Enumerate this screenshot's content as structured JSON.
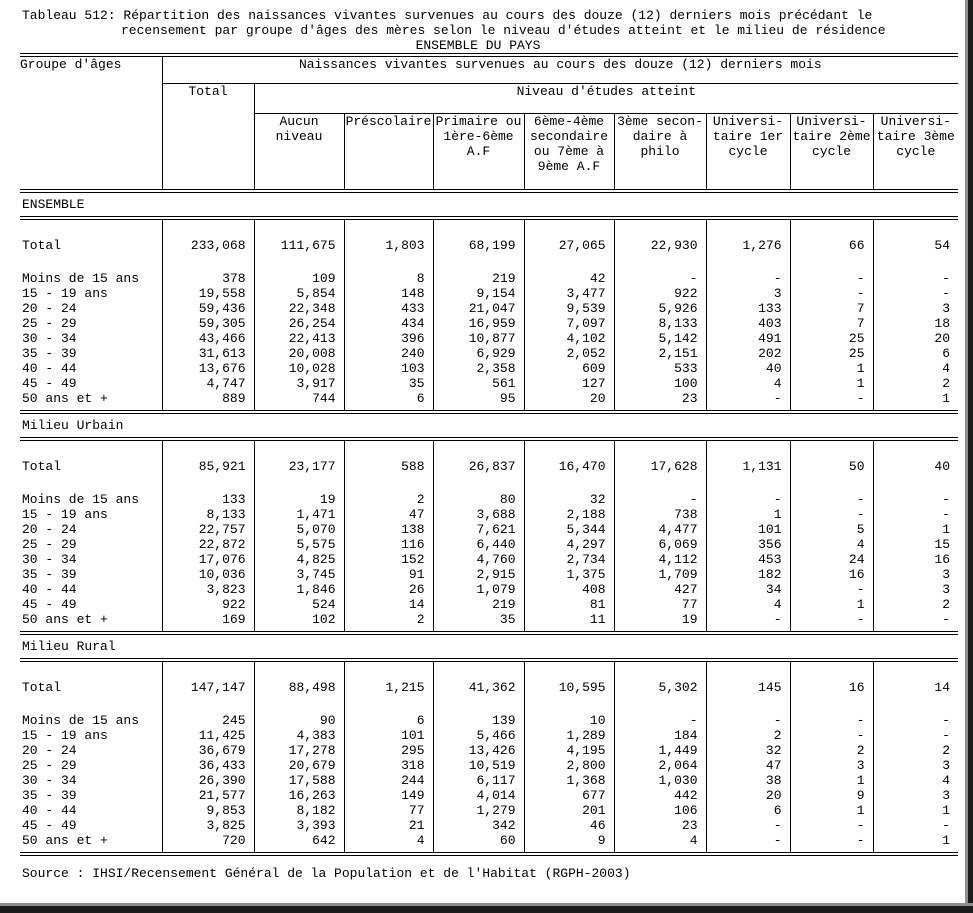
{
  "title": {
    "line1": "Tableau 512: Répartition des naissances vivantes survenues au cours des douze (12) derniers mois précédant le",
    "line2": "recensement par groupe d'âges des mères selon le niveau d'études atteint et le milieu de résidence",
    "line3": "ENSEMBLE DU PAYS"
  },
  "header": {
    "col_groupe": "Groupe d'âges",
    "span_naissances": "Naissances vivantes survenues au cours des douze (12) derniers mois",
    "col_total": "Total",
    "span_niveau": "Niveau d'études atteint",
    "edu_columns": [
      "Aucun\nniveau",
      "Préscolaire",
      "Primaire ou\n1ère-6ème\nA.F",
      "6ème-4ème\nsecondaire\nou 7ème à\n9ème A.F",
      "3ème secon-\ndaire à\nphilo",
      "Universi-\ntaire 1er\ncycle",
      "Universi-\ntaire 2ème\ncycle",
      "Universi-\ntaire 3ème\ncycle"
    ]
  },
  "chart_data": {
    "type": "table",
    "title": "Tableau 512 — Naissances vivantes des 12 derniers mois par groupe d'âges des mères, niveau d'études et milieu de résidence (ENSEMBLE DU PAYS)",
    "columns": [
      "Total",
      "Aucun niveau",
      "Préscolaire",
      "Primaire ou 1ère-6ème A.F",
      "6ème-4ème secondaire ou 7ème à 9ème A.F",
      "3ème secondaire à philo",
      "Universitaire 1er cycle",
      "Universitaire 2ème cycle",
      "Universitaire 3ème cycle"
    ]
  },
  "sections": [
    {
      "label": "ENSEMBLE",
      "rows": [
        {
          "label": "Total",
          "values": [
            "233,068",
            "111,675",
            "1,803",
            "68,199",
            "27,065",
            "22,930",
            "1,276",
            "66",
            "54"
          ]
        },
        {
          "label": "Moins de 15 ans",
          "values": [
            "378",
            "109",
            "8",
            "219",
            "42",
            "-",
            "-",
            "-",
            "-"
          ]
        },
        {
          "label": "15 - 19 ans",
          "values": [
            "19,558",
            "5,854",
            "148",
            "9,154",
            "3,477",
            "922",
            "3",
            "-",
            "-"
          ]
        },
        {
          "label": "20 - 24",
          "values": [
            "59,436",
            "22,348",
            "433",
            "21,047",
            "9,539",
            "5,926",
            "133",
            "7",
            "3"
          ]
        },
        {
          "label": "25 - 29",
          "values": [
            "59,305",
            "26,254",
            "434",
            "16,959",
            "7,097",
            "8,133",
            "403",
            "7",
            "18"
          ]
        },
        {
          "label": "30 - 34",
          "values": [
            "43,466",
            "22,413",
            "396",
            "10,877",
            "4,102",
            "5,142",
            "491",
            "25",
            "20"
          ]
        },
        {
          "label": "35 - 39",
          "values": [
            "31,613",
            "20,008",
            "240",
            "6,929",
            "2,052",
            "2,151",
            "202",
            "25",
            "6"
          ]
        },
        {
          "label": "40 - 44",
          "values": [
            "13,676",
            "10,028",
            "103",
            "2,358",
            "609",
            "533",
            "40",
            "1",
            "4"
          ]
        },
        {
          "label": "45 - 49",
          "values": [
            "4,747",
            "3,917",
            "35",
            "561",
            "127",
            "100",
            "4",
            "1",
            "2"
          ]
        },
        {
          "label": "50 ans et +",
          "values": [
            "889",
            "744",
            "6",
            "95",
            "20",
            "23",
            "-",
            "-",
            "1"
          ]
        }
      ]
    },
    {
      "label": "Milieu Urbain",
      "rows": [
        {
          "label": "Total",
          "values": [
            "85,921",
            "23,177",
            "588",
            "26,837",
            "16,470",
            "17,628",
            "1,131",
            "50",
            "40"
          ]
        },
        {
          "label": "Moins de 15 ans",
          "values": [
            "133",
            "19",
            "2",
            "80",
            "32",
            "-",
            "-",
            "-",
            "-"
          ]
        },
        {
          "label": "15 - 19 ans",
          "values": [
            "8,133",
            "1,471",
            "47",
            "3,688",
            "2,188",
            "738",
            "1",
            "-",
            "-"
          ]
        },
        {
          "label": "20 - 24",
          "values": [
            "22,757",
            "5,070",
            "138",
            "7,621",
            "5,344",
            "4,477",
            "101",
            "5",
            "1"
          ]
        },
        {
          "label": "25 - 29",
          "values": [
            "22,872",
            "5,575",
            "116",
            "6,440",
            "4,297",
            "6,069",
            "356",
            "4",
            "15"
          ]
        },
        {
          "label": "30 - 34",
          "values": [
            "17,076",
            "4,825",
            "152",
            "4,760",
            "2,734",
            "4,112",
            "453",
            "24",
            "16"
          ]
        },
        {
          "label": "35 - 39",
          "values": [
            "10,036",
            "3,745",
            "91",
            "2,915",
            "1,375",
            "1,709",
            "182",
            "16",
            "3"
          ]
        },
        {
          "label": "40 - 44",
          "values": [
            "3,823",
            "1,846",
            "26",
            "1,079",
            "408",
            "427",
            "34",
            "-",
            "3"
          ]
        },
        {
          "label": "45 - 49",
          "values": [
            "922",
            "524",
            "14",
            "219",
            "81",
            "77",
            "4",
            "1",
            "2"
          ]
        },
        {
          "label": "50 ans et +",
          "values": [
            "169",
            "102",
            "2",
            "35",
            "11",
            "19",
            "-",
            "-",
            "-"
          ]
        }
      ]
    },
    {
      "label": "Milieu Rural",
      "rows": [
        {
          "label": "Total",
          "values": [
            "147,147",
            "88,498",
            "1,215",
            "41,362",
            "10,595",
            "5,302",
            "145",
            "16",
            "14"
          ]
        },
        {
          "label": "Moins de 15 ans",
          "values": [
            "245",
            "90",
            "6",
            "139",
            "10",
            "-",
            "-",
            "-",
            "-"
          ]
        },
        {
          "label": "15 - 19 ans",
          "values": [
            "11,425",
            "4,383",
            "101",
            "5,466",
            "1,289",
            "184",
            "2",
            "-",
            "-"
          ]
        },
        {
          "label": "20 - 24",
          "values": [
            "36,679",
            "17,278",
            "295",
            "13,426",
            "4,195",
            "1,449",
            "32",
            "2",
            "2"
          ]
        },
        {
          "label": "25 - 29",
          "values": [
            "36,433",
            "20,679",
            "318",
            "10,519",
            "2,800",
            "2,064",
            "47",
            "3",
            "3"
          ]
        },
        {
          "label": "30 - 34",
          "values": [
            "26,390",
            "17,588",
            "244",
            "6,117",
            "1,368",
            "1,030",
            "38",
            "1",
            "4"
          ]
        },
        {
          "label": "35 - 39",
          "values": [
            "21,577",
            "16,263",
            "149",
            "4,014",
            "677",
            "442",
            "20",
            "9",
            "3"
          ]
        },
        {
          "label": "40 - 44",
          "values": [
            "9,853",
            "8,182",
            "77",
            "1,279",
            "201",
            "106",
            "6",
            "1",
            "1"
          ]
        },
        {
          "label": "45 - 49",
          "values": [
            "3,825",
            "3,393",
            "21",
            "342",
            "46",
            "23",
            "-",
            "-",
            "-"
          ]
        },
        {
          "label": "50 ans et +",
          "values": [
            "720",
            "642",
            "4",
            "60",
            "9",
            "4",
            "-",
            "-",
            "1"
          ]
        }
      ]
    }
  ],
  "source": "Source : IHSI/Recensement Général de la Population et de l'Habitat (RGPH-2003)"
}
